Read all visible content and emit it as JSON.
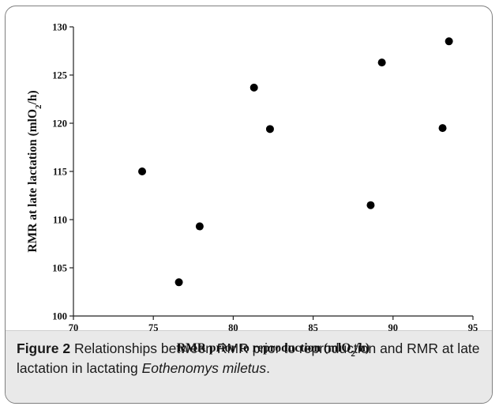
{
  "chart_data": {
    "type": "scatter",
    "xlabel": "RMR prior to reproduction (mlO2/h)",
    "ylabel": "RMR at late lactation (mlO2/h)",
    "xlim": [
      70,
      95
    ],
    "ylim": [
      100,
      130
    ],
    "x_ticks": [
      "70",
      "75",
      "80",
      "85",
      "90",
      "95"
    ],
    "y_ticks": [
      "100",
      "105",
      "110",
      "115",
      "120",
      "125",
      "130"
    ],
    "grid": false,
    "points": [
      {
        "x": 74.3,
        "y": 115.0
      },
      {
        "x": 76.6,
        "y": 103.5
      },
      {
        "x": 77.9,
        "y": 109.3
      },
      {
        "x": 81.3,
        "y": 123.7
      },
      {
        "x": 82.3,
        "y": 119.4
      },
      {
        "x": 88.6,
        "y": 111.5
      },
      {
        "x": 89.3,
        "y": 126.3
      },
      {
        "x": 93.1,
        "y": 119.5
      },
      {
        "x": 93.5,
        "y": 128.5
      }
    ]
  },
  "caption": {
    "label": "Figure 2",
    "text_before_species": " Relationships between RMR prior to reproduction and RMR at late lactation in lactating ",
    "species": "Eothenomys miletus",
    "text_after_species": "."
  }
}
